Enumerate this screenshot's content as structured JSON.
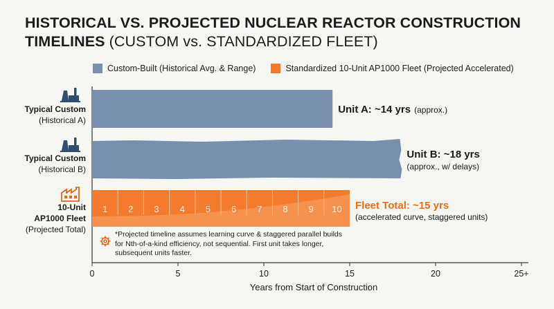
{
  "title": {
    "bold": "HISTORICAL VS. PROJECTED NUCLEAR REACTOR CONSTRUCTION TIMELINES",
    "light": "(CUSTOM vs. STANDARDIZED FLEET)"
  },
  "colors": {
    "custom": "#7890ad",
    "standardized": "#f47a2c",
    "standardized_label": "#ef6c13",
    "icon": "#2f4d6e",
    "factory_icon": "#e8641a",
    "axis": "#333333"
  },
  "legend": [
    {
      "label": "Custom-Built (Historical Avg. & Range)",
      "series": "custom"
    },
    {
      "label": "Standardized 10-Unit AP1000 Fleet (Projected Accelerated)",
      "series": "standardized"
    }
  ],
  "note": "*Projected timeline assumes learning curve & staggered parallel builds for Nth-of-a-kind efficiency, not sequential. First unit takes longer, subsequent units faster.",
  "chart_data": {
    "type": "bar",
    "orientation": "horizontal",
    "categories": [
      [
        "Typical Custom",
        "(Historical A)"
      ],
      [
        "Typical Custom",
        "(Historical B)"
      ],
      [
        "10-Unit",
        "AP1000 Fleet",
        "(Projected Total)"
      ]
    ],
    "values": [
      14,
      18,
      15
    ],
    "bar_series": [
      "custom",
      "custom",
      "standardized"
    ],
    "value_labels": [
      {
        "main": "Unit A: ~14 yrs",
        "sub": "(approx.)"
      },
      {
        "main": "Unit B: ~18 yrs",
        "sub": "(approx., w/ delays)"
      },
      {
        "main": "Fleet Total: ~15 yrs",
        "sub": "(accelerated curve, staggered units)"
      }
    ],
    "fleet_units": [
      "1",
      "2",
      "3",
      "4",
      "5",
      "6",
      "7",
      "8",
      "9",
      "10"
    ],
    "xlabel": "Years from Start of Construction",
    "xlim": [
      0,
      25
    ],
    "xticks": [
      0,
      5,
      10,
      15,
      20,
      25
    ],
    "xtick_labels": [
      "0",
      "5",
      "10",
      "15",
      "20",
      "25+"
    ],
    "grid": false,
    "legend_position": "top"
  }
}
